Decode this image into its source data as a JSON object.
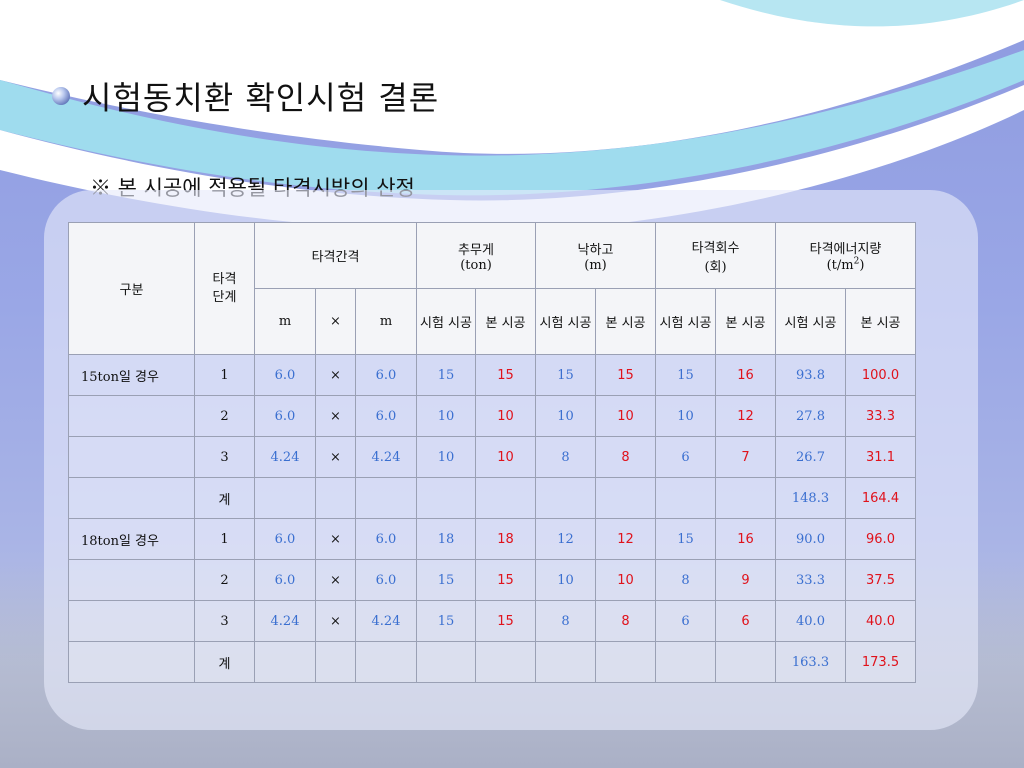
{
  "title": "시험동치환 확인시험 결론",
  "subtitle": "※ 본 시공에 적용될 타격시방의 산정",
  "headers": {
    "category": "구분",
    "stage": "타격 단계",
    "interval": "타격간격",
    "weight": "추무게",
    "weight_unit": "(ton)",
    "drop": "낙하고",
    "drop_unit": "(m)",
    "blows": "타격회수",
    "blows_unit": "(회)",
    "energy": "타격에너지량",
    "energy_unit": "(t/m2)",
    "m": "m",
    "x": "×",
    "test": "시험 시공",
    "main": "본 시공"
  },
  "rows": [
    {
      "category": "15ton일 경우",
      "stage": "1",
      "a": "6.0",
      "x": "×",
      "b": "6.0",
      "w_test": "15",
      "w_main": "15",
      "d_test": "15",
      "d_main": "15",
      "n_test": "15",
      "n_main": "16",
      "e_test": "93.8",
      "e_main": "100.0"
    },
    {
      "category": "",
      "stage": "2",
      "a": "6.0",
      "x": "×",
      "b": "6.0",
      "w_test": "10",
      "w_main": "10",
      "d_test": "10",
      "d_main": "10",
      "n_test": "10",
      "n_main": "12",
      "e_test": "27.8",
      "e_main": "33.3"
    },
    {
      "category": "",
      "stage": "3",
      "a": "4.24",
      "x": "×",
      "b": "4.24",
      "w_test": "10",
      "w_main": "10",
      "d_test": "8",
      "d_main": "8",
      "n_test": "6",
      "n_main": "7",
      "e_test": "26.7",
      "e_main": "31.1"
    },
    {
      "category": "",
      "stage": "계",
      "a": "",
      "x": "",
      "b": "",
      "w_test": "",
      "w_main": "",
      "d_test": "",
      "d_main": "",
      "n_test": "",
      "n_main": "",
      "e_test": "148.3",
      "e_main": "164.4"
    },
    {
      "category": "18ton일 경우",
      "stage": "1",
      "a": "6.0",
      "x": "×",
      "b": "6.0",
      "w_test": "18",
      "w_main": "18",
      "d_test": "12",
      "d_main": "12",
      "n_test": "15",
      "n_main": "16",
      "e_test": "90.0",
      "e_main": "96.0"
    },
    {
      "category": "",
      "stage": "2",
      "a": "6.0",
      "x": "×",
      "b": "6.0",
      "w_test": "15",
      "w_main": "15",
      "d_test": "10",
      "d_main": "10",
      "n_test": "8",
      "n_main": "9",
      "e_test": "33.3",
      "e_main": "37.5"
    },
    {
      "category": "",
      "stage": "3",
      "a": "4.24",
      "x": "×",
      "b": "4.24",
      "w_test": "15",
      "w_main": "15",
      "d_test": "8",
      "d_main": "8",
      "n_test": "6",
      "n_main": "6",
      "e_test": "40.0",
      "e_main": "40.0"
    },
    {
      "category": "",
      "stage": "계",
      "a": "",
      "x": "",
      "b": "",
      "w_test": "",
      "w_main": "",
      "d_test": "",
      "d_main": "",
      "n_test": "",
      "n_main": "",
      "e_test": "163.3",
      "e_main": "173.5"
    }
  ],
  "colors": {
    "test_value": "#3a6fd0",
    "main_value": "#e0121b"
  }
}
